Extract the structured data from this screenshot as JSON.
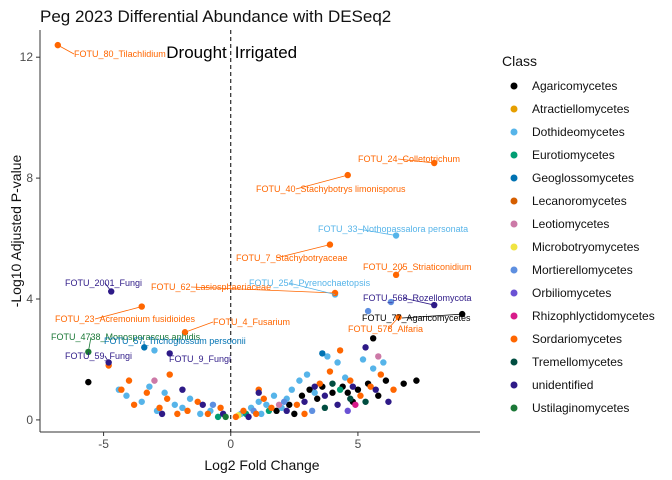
{
  "chart_data": {
    "type": "scatter",
    "title": "Peg 2023 Differential Abundance with DESeq2",
    "xlabel": "Log2 Fold Change",
    "ylabel": "-Log10 Adjusted P-value",
    "xlim": [
      -7.5,
      9.8
    ],
    "ylim": [
      -0.4,
      12.9
    ],
    "xticks": [
      -5,
      0,
      5
    ],
    "yticks": [
      0,
      4,
      8,
      12
    ],
    "grid": false,
    "vline_x": 0,
    "region_labels": {
      "left": "Drought",
      "right": "Irrigated"
    },
    "legend": {
      "title": "Class",
      "placement": "right",
      "entries": [
        {
          "name": "Agaricomycetes",
          "color": "#000000"
        },
        {
          "name": "Atractiellomycetes",
          "color": "#E69F00"
        },
        {
          "name": "Dothideomycetes",
          "color": "#56B4E9"
        },
        {
          "name": "Eurotiomycetes",
          "color": "#009E73"
        },
        {
          "name": "Geoglossomycetes",
          "color": "#0072B2"
        },
        {
          "name": "Lecanoromycetes",
          "color": "#D55E00"
        },
        {
          "name": "Leotiomycetes",
          "color": "#CC79A7"
        },
        {
          "name": "Microbotryomycetes",
          "color": "#F0E442"
        },
        {
          "name": "Mortierellomycetes",
          "color": "#5E8FE0"
        },
        {
          "name": "Orbiliomycetes",
          "color": "#6A52D4"
        },
        {
          "name": "Rhizophlyctidomycetes",
          "color": "#D81B8A"
        },
        {
          "name": "Sordariomycetes",
          "color": "#FF6600"
        },
        {
          "name": "Tremellomycetes",
          "color": "#004D40"
        },
        {
          "name": "unidentified",
          "color": "#2E1A87"
        },
        {
          "name": "Ustilaginomycetes",
          "color": "#1B7837"
        }
      ]
    },
    "annotations": [
      {
        "label": "FOTU_80_Tilachlidium",
        "x": -6.8,
        "y": 12.4,
        "color": "#FF6600"
      },
      {
        "label": "FOTU_24_Colletotrichum",
        "x": 8.0,
        "y": 8.5,
        "color": "#FF6600"
      },
      {
        "label": "FOTU_40_Stachybotrys limonisporus",
        "x": 4.6,
        "y": 8.1,
        "color": "#FF6600"
      },
      {
        "label": "FOTU_33_Nothopassalora personata",
        "x": 6.5,
        "y": 6.1,
        "color": "#56B4E9"
      },
      {
        "label": "FOTU_7_Stachybotryaceae",
        "x": 3.9,
        "y": 5.8,
        "color": "#FF6600"
      },
      {
        "label": "FOTU_205_Striaticonidium",
        "x": 6.5,
        "y": 4.8,
        "color": "#FF6600"
      },
      {
        "label": "FOTU_2001_Fungi",
        "x": -4.7,
        "y": 4.25,
        "color": "#2E1A87"
      },
      {
        "label": "FOTU_62_Lasiosphaeriaceae",
        "x": 4.1,
        "y": 4.2,
        "color": "#FF6600"
      },
      {
        "label": "FOTU_254_Pyrenochaetopsis",
        "x": 4.1,
        "y": 4.15,
        "color": "#56B4E9"
      },
      {
        "label": "FOTU_568_Rozellomycota",
        "x": 8.0,
        "y": 3.8,
        "color": "#2E1A87"
      },
      {
        "label": "FOTU_77_Agaricomycetes",
        "x": 9.1,
        "y": 3.5,
        "color": "#000000"
      },
      {
        "label": "FOTU_578_Alfaria",
        "x": 6.6,
        "y": 3.4,
        "color": "#FF6600"
      },
      {
        "label": "FOTU_23_Acremonium fusidioides",
        "x": -3.5,
        "y": 3.75,
        "color": "#FF6600"
      },
      {
        "label": "FOTU_4_Fusarium",
        "x": -1.8,
        "y": 2.9,
        "color": "#FF6600"
      },
      {
        "label": "FOTU_4738_Monosporascus aphidis",
        "x": -5.6,
        "y": 2.25,
        "color": "#1B7837"
      },
      {
        "label": "FOTU_57_Trichoglossum persoonii",
        "x": -3.4,
        "y": 2.4,
        "color": "#0072B2"
      },
      {
        "label": "FOTU_59_Fungi",
        "x": -4.8,
        "y": 1.9,
        "color": "#2E1A87"
      },
      {
        "label": "FOTU_9_Fungi",
        "x": -2.4,
        "y": 2.2,
        "color": "#2E1A87"
      }
    ],
    "series": [
      {
        "name": "Agaricomycetes",
        "points": [
          [
            -5.6,
            1.25
          ],
          [
            2.3,
            0.5
          ],
          [
            2.8,
            0.8
          ],
          [
            3.1,
            1.0
          ],
          [
            3.4,
            0.7
          ],
          [
            3.6,
            1.1
          ],
          [
            4.0,
            0.9
          ],
          [
            4.4,
            1.1
          ],
          [
            4.6,
            0.9
          ],
          [
            5.0,
            1.0
          ],
          [
            5.4,
            1.2
          ],
          [
            5.8,
            0.8
          ],
          [
            6.1,
            1.3
          ],
          [
            6.8,
            1.2
          ],
          [
            7.3,
            1.3
          ],
          [
            5.6,
            2.7
          ],
          [
            9.1,
            3.5
          ],
          [
            1.8,
            0.3
          ],
          [
            2.5,
            0.2
          ],
          [
            4.8,
            0.6
          ]
        ]
      },
      {
        "name": "Dothideomycetes",
        "points": [
          [
            6.5,
            6.1
          ],
          [
            4.1,
            4.15
          ],
          [
            -4.1,
            0.8
          ],
          [
            -3.5,
            0.6
          ],
          [
            -3.2,
            1.1
          ],
          [
            -2.9,
            0.3
          ],
          [
            -2.6,
            0.9
          ],
          [
            -2.2,
            0.5
          ],
          [
            -1.9,
            0.4
          ],
          [
            -1.6,
            0.7
          ],
          [
            -1.2,
            0.2
          ],
          [
            -0.8,
            0.3
          ],
          [
            0.4,
            0.2
          ],
          [
            0.8,
            0.4
          ],
          [
            1.1,
            0.6
          ],
          [
            1.4,
            0.5
          ],
          [
            1.7,
            0.8
          ],
          [
            2.0,
            0.4
          ],
          [
            2.4,
            1.0
          ],
          [
            2.7,
            1.3
          ],
          [
            3.0,
            1.5
          ],
          [
            3.3,
            0.9
          ],
          [
            3.8,
            2.1
          ],
          [
            4.2,
            1.9
          ],
          [
            4.5,
            1.4
          ],
          [
            5.2,
            2.0
          ],
          [
            5.6,
            1.7
          ],
          [
            6.0,
            1.9
          ],
          [
            -4.4,
            1.0
          ],
          [
            -3.0,
            2.3
          ],
          [
            1.2,
            0.2
          ],
          [
            2.2,
            0.7
          ]
        ]
      },
      {
        "name": "Eurotiomycetes",
        "points": [
          [
            -0.5,
            0.1
          ],
          [
            0.6,
            0.2
          ],
          [
            1.5,
            0.3
          ],
          [
            4.3,
            1.0
          ]
        ]
      },
      {
        "name": "Geoglossomycetes",
        "points": [
          [
            -3.4,
            2.4
          ],
          [
            3.6,
            2.2
          ]
        ]
      },
      {
        "name": "Leotiomycetes",
        "points": [
          [
            5.8,
            2.1
          ],
          [
            -3.0,
            1.3
          ],
          [
            1.9,
            0.5
          ]
        ]
      },
      {
        "name": "Microbotryomycetes",
        "points": [
          [
            0.3,
            0.15
          ]
        ]
      },
      {
        "name": "Mortierellomycetes",
        "points": [
          [
            6.3,
            3.9
          ],
          [
            5.4,
            3.6
          ],
          [
            -0.7,
            0.5
          ],
          [
            0.9,
            0.3
          ],
          [
            2.1,
            0.6
          ],
          [
            3.2,
            0.3
          ]
        ]
      },
      {
        "name": "Orbiliomycetes",
        "points": [
          [
            4.6,
            0.3
          ]
        ]
      },
      {
        "name": "Rhizophlyctidomycetes",
        "points": [
          [
            4.9,
            0.5
          ]
        ]
      },
      {
        "name": "Sordariomycetes",
        "points": [
          [
            -6.8,
            12.4
          ],
          [
            8.0,
            8.5
          ],
          [
            4.6,
            8.1
          ],
          [
            3.9,
            5.8
          ],
          [
            6.5,
            4.8
          ],
          [
            4.1,
            4.2
          ],
          [
            6.6,
            3.4
          ],
          [
            -3.5,
            3.75
          ],
          [
            -1.8,
            2.9
          ],
          [
            -4.8,
            1.8
          ],
          [
            -4.3,
            1.0
          ],
          [
            -3.8,
            0.5
          ],
          [
            -3.3,
            0.9
          ],
          [
            -2.8,
            0.4
          ],
          [
            -2.5,
            0.7
          ],
          [
            -2.1,
            0.2
          ],
          [
            -1.7,
            0.3
          ],
          [
            -1.3,
            0.6
          ],
          [
            -0.9,
            0.2
          ],
          [
            -0.4,
            0.4
          ],
          [
            0.2,
            0.1
          ],
          [
            0.5,
            0.3
          ],
          [
            1.0,
            0.2
          ],
          [
            1.3,
            0.7
          ],
          [
            1.6,
            0.4
          ],
          [
            2.6,
            0.5
          ],
          [
            2.9,
            0.2
          ],
          [
            3.5,
            1.2
          ],
          [
            3.9,
            1.6
          ],
          [
            4.7,
            1.3
          ],
          [
            5.1,
            0.8
          ],
          [
            5.5,
            1.1
          ],
          [
            5.9,
            1.5
          ],
          [
            6.4,
            1.0
          ],
          [
            -4.0,
            1.3
          ],
          [
            -2.4,
            1.5
          ],
          [
            1.1,
            1.0
          ],
          [
            4.3,
            2.3
          ]
        ]
      },
      {
        "name": "Tremellomycetes",
        "points": [
          [
            4.0,
            1.2
          ],
          [
            4.7,
            0.7
          ],
          [
            3.7,
            0.4
          ],
          [
            5.3,
            0.6
          ]
        ]
      },
      {
        "name": "unidentified",
        "points": [
          [
            -4.7,
            4.25
          ],
          [
            8.0,
            3.8
          ],
          [
            -4.8,
            1.9
          ],
          [
            -2.4,
            2.2
          ],
          [
            -1.9,
            1.0
          ],
          [
            -1.1,
            0.5
          ],
          [
            -0.3,
            0.2
          ],
          [
            0.7,
            0.1
          ],
          [
            1.1,
            0.9
          ],
          [
            2.2,
            0.3
          ],
          [
            2.9,
            0.6
          ],
          [
            3.3,
            1.1
          ],
          [
            3.7,
            0.8
          ],
          [
            4.2,
            0.5
          ],
          [
            4.8,
            1.1
          ],
          [
            5.3,
            2.4
          ],
          [
            5.7,
            1.0
          ],
          [
            6.2,
            0.6
          ],
          [
            -2.7,
            0.2
          ]
        ]
      },
      {
        "name": "Ustilaginomycetes",
        "points": [
          [
            -5.6,
            2.25
          ],
          [
            -0.2,
            0.1
          ]
        ]
      }
    ]
  }
}
